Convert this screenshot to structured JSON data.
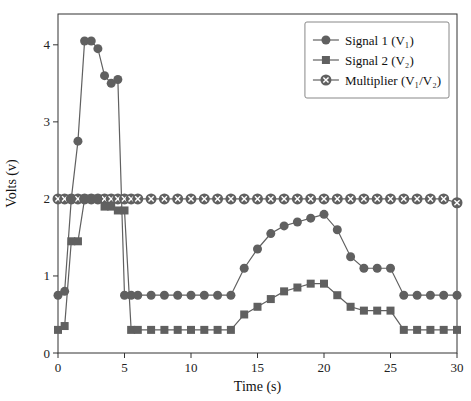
{
  "chart_data": {
    "type": "line",
    "xlabel": "Time (s)",
    "ylabel": "Volts (v)",
    "xlim": [
      0,
      30
    ],
    "ylim": [
      0,
      4.4
    ],
    "xticks": [
      0,
      5,
      10,
      15,
      20,
      25,
      30
    ],
    "yticks": [
      0,
      1,
      2,
      3,
      4
    ],
    "legend": "upper right",
    "grid": false,
    "x": [
      0,
      0.5,
      1,
      1.5,
      2,
      2.5,
      3,
      3.5,
      4,
      4.5,
      5,
      5.5,
      6,
      7,
      8,
      9,
      10,
      11,
      12,
      13,
      14,
      15,
      16,
      17,
      18,
      19,
      20,
      21,
      22,
      23,
      24,
      25,
      26,
      27,
      28,
      29,
      30
    ],
    "series": [
      {
        "name": "Signal 1 (V₁)",
        "color": "#606060",
        "marker": "circle",
        "values": [
          0.75,
          0.8,
          2.0,
          2.75,
          4.05,
          4.05,
          3.95,
          3.6,
          3.5,
          3.55,
          0.75,
          0.75,
          0.75,
          0.75,
          0.75,
          0.75,
          0.75,
          0.75,
          0.75,
          0.75,
          1.1,
          1.35,
          1.55,
          1.65,
          1.7,
          1.75,
          1.8,
          1.6,
          1.25,
          1.1,
          1.1,
          1.1,
          0.75,
          0.75,
          0.75,
          0.75,
          0.75
        ]
      },
      {
        "name": "Signal 2 (V₂)",
        "color": "#606060",
        "marker": "square",
        "values": [
          0.3,
          0.35,
          1.45,
          1.45,
          2.0,
          2.0,
          2.0,
          1.9,
          1.9,
          1.85,
          1.85,
          0.3,
          0.3,
          0.3,
          0.3,
          0.3,
          0.3,
          0.3,
          0.3,
          0.3,
          0.5,
          0.6,
          0.7,
          0.8,
          0.85,
          0.9,
          0.9,
          0.75,
          0.6,
          0.55,
          0.55,
          0.55,
          0.3,
          0.3,
          0.3,
          0.3,
          0.3
        ]
      },
      {
        "name": "Multiplier (V₁/V₂)",
        "color": "#606060",
        "marker": "otimes",
        "values": [
          2.0,
          2.0,
          2.0,
          2.0,
          2.0,
          2.0,
          2.0,
          2.0,
          2.0,
          2.0,
          2.0,
          2.0,
          2.0,
          2.0,
          2.0,
          2.0,
          2.0,
          2.0,
          2.0,
          2.0,
          2.0,
          2.0,
          2.0,
          2.0,
          2.0,
          2.0,
          2.0,
          2.0,
          2.0,
          2.0,
          2.0,
          2.0,
          2.0,
          2.0,
          2.0,
          2.0,
          1.95
        ]
      }
    ]
  }
}
